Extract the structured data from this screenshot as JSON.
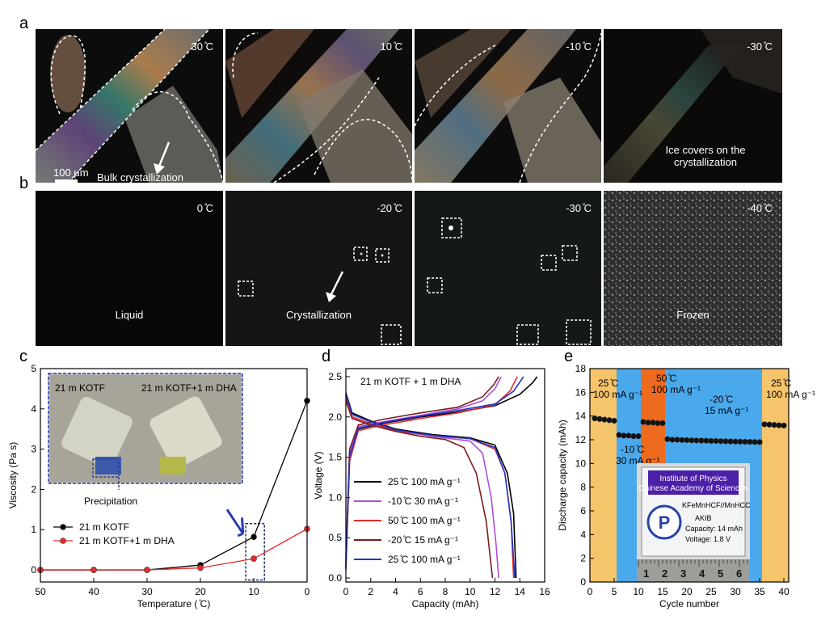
{
  "panel_labels": {
    "a": "a",
    "b": "b",
    "c": "c",
    "d": "d",
    "e": "e"
  },
  "row_a": {
    "temps": [
      "30 ̊C",
      "10 ̊C",
      "-10 ̊C",
      "-30 ̊C"
    ],
    "scale_bar": "100 μm",
    "annotation_1": "Bulk crystallization",
    "annotation_2": "Ice covers on the crystallization"
  },
  "row_b": {
    "temps": [
      "0 ̊C",
      "-20 ̊C",
      "-30 ̊C",
      "-40 ̊C"
    ],
    "captions": [
      "Liquid",
      "Crystallization",
      "",
      "Frozen"
    ]
  },
  "chart_data": [
    {
      "type": "line",
      "panel": "c",
      "xlabel": "Temperature ( ̊C)",
      "ylabel": "Viscosity (Pa s)",
      "xlim": [
        50,
        0
      ],
      "ylim": [
        -0.3,
        5
      ],
      "xticks": [
        50,
        40,
        30,
        20,
        10,
        0
      ],
      "yticks": [
        0,
        1,
        2,
        3,
        4,
        5
      ],
      "series": [
        {
          "name": "21 m KOTF",
          "color": "#000000",
          "x": [
            50,
            40,
            30,
            20,
            10,
            0
          ],
          "y": [
            0.0,
            0.0,
            0.0,
            0.12,
            0.82,
            4.2
          ]
        },
        {
          "name": "21 m KOTF+1 m DHA",
          "color": "#e32b2b",
          "x": [
            50,
            40,
            30,
            20,
            10,
            0
          ],
          "y": [
            0.0,
            0.0,
            0.0,
            0.05,
            0.28,
            1.02
          ]
        }
      ],
      "inset": {
        "label_left": "21 m KOTF",
        "label_right": "21 m KOTF+1 m DHA",
        "annotation": "Precipitation"
      }
    },
    {
      "type": "line",
      "panel": "d",
      "title": "21 m KOTF + 1 m DHA",
      "xlabel": "Capacity (mAh)",
      "ylabel": "Voltage (V)",
      "xlim": [
        0,
        16
      ],
      "ylim": [
        -0.05,
        2.6
      ],
      "xticks": [
        0,
        2,
        4,
        6,
        8,
        10,
        12,
        14,
        16
      ],
      "yticks": [
        0.0,
        0.5,
        1.0,
        1.5,
        2.0,
        2.5
      ],
      "series": [
        {
          "name": "25 ̊C   100 mA g⁻¹",
          "color": "#000000",
          "charge": [
            [
              0,
              0.15
            ],
            [
              0.3,
              1.5
            ],
            [
              1,
              1.85
            ],
            [
              3,
              1.92
            ],
            [
              6,
              2.0
            ],
            [
              9,
              2.06
            ],
            [
              12,
              2.14
            ],
            [
              14,
              2.28
            ],
            [
              15,
              2.42
            ],
            [
              15.4,
              2.5
            ]
          ],
          "discharge": [
            [
              0,
              2.3
            ],
            [
              0.5,
              2.05
            ],
            [
              2,
              1.95
            ],
            [
              4,
              1.85
            ],
            [
              7,
              1.78
            ],
            [
              10,
              1.74
            ],
            [
              12,
              1.65
            ],
            [
              13,
              1.3
            ],
            [
              13.5,
              0.8
            ],
            [
              13.7,
              0.0
            ]
          ]
        },
        {
          "name": "-10 ̊C   30 mA g⁻¹",
          "color": "#b04ad8",
          "charge": [
            [
              0,
              0.2
            ],
            [
              0.3,
              1.55
            ],
            [
              1,
              1.88
            ],
            [
              3,
              1.94
            ],
            [
              6,
              2.02
            ],
            [
              9,
              2.1
            ],
            [
              11,
              2.2
            ],
            [
              12,
              2.35
            ],
            [
              12.5,
              2.5
            ]
          ],
          "discharge": [
            [
              0,
              2.28
            ],
            [
              0.5,
              2.0
            ],
            [
              2,
              1.92
            ],
            [
              4,
              1.83
            ],
            [
              7,
              1.76
            ],
            [
              10,
              1.7
            ],
            [
              11,
              1.55
            ],
            [
              11.7,
              1.0
            ],
            [
              12.1,
              0.4
            ],
            [
              12.3,
              0.0
            ]
          ]
        },
        {
          "name": "50 ̊C   100 mA g⁻¹",
          "color": "#e32b2b",
          "charge": [
            [
              0,
              0.1
            ],
            [
              0.3,
              1.45
            ],
            [
              1,
              1.83
            ],
            [
              3,
              1.9
            ],
            [
              6,
              1.98
            ],
            [
              9,
              2.05
            ],
            [
              12,
              2.15
            ],
            [
              13.2,
              2.32
            ],
            [
              13.8,
              2.5
            ]
          ],
          "discharge": [
            [
              0,
              2.25
            ],
            [
              0.5,
              2.0
            ],
            [
              2,
              1.92
            ],
            [
              4,
              1.83
            ],
            [
              7,
              1.77
            ],
            [
              10,
              1.73
            ],
            [
              12,
              1.6
            ],
            [
              12.8,
              1.3
            ],
            [
              13.3,
              0.7
            ],
            [
              13.5,
              0.0
            ]
          ]
        },
        {
          "name": "-20 ̊C   15 mA g⁻¹",
          "color": "#7a1d1d",
          "charge": [
            [
              0,
              0.25
            ],
            [
              0.3,
              1.6
            ],
            [
              1,
              1.9
            ],
            [
              3,
              1.97
            ],
            [
              6,
              2.05
            ],
            [
              9,
              2.12
            ],
            [
              11,
              2.25
            ],
            [
              11.9,
              2.4
            ],
            [
              12.3,
              2.5
            ]
          ],
          "discharge": [
            [
              0,
              2.2
            ],
            [
              0.5,
              1.98
            ],
            [
              2,
              1.9
            ],
            [
              4,
              1.82
            ],
            [
              6,
              1.76
            ],
            [
              8,
              1.72
            ],
            [
              9.5,
              1.62
            ],
            [
              10.5,
              1.3
            ],
            [
              11.3,
              0.7
            ],
            [
              11.8,
              0.0
            ]
          ]
        },
        {
          "name": "25 ̊C   100 mA g⁻¹",
          "color": "#2235c8",
          "charge": [
            [
              0,
              0.12
            ],
            [
              0.3,
              1.5
            ],
            [
              1,
              1.86
            ],
            [
              3,
              1.93
            ],
            [
              6,
              2.01
            ],
            [
              9,
              2.08
            ],
            [
              12,
              2.16
            ],
            [
              13.5,
              2.32
            ],
            [
              14.3,
              2.5
            ]
          ],
          "discharge": [
            [
              0,
              2.28
            ],
            [
              0.5,
              2.03
            ],
            [
              2,
              1.94
            ],
            [
              4,
              1.84
            ],
            [
              7,
              1.77
            ],
            [
              10,
              1.73
            ],
            [
              12,
              1.62
            ],
            [
              12.8,
              1.3
            ],
            [
              13.3,
              0.7
            ],
            [
              13.6,
              0.0
            ]
          ]
        }
      ]
    },
    {
      "type": "scatter",
      "panel": "e",
      "xlabel": "Cycle number",
      "ylabel": "Discharge capacity (mAh)",
      "xlim": [
        0,
        41
      ],
      "ylim": [
        0,
        18
      ],
      "xticks": [
        0,
        5,
        10,
        15,
        20,
        25,
        30,
        35,
        40
      ],
      "yticks": [
        0,
        2,
        4,
        6,
        8,
        10,
        12,
        14,
        16,
        18
      ],
      "bands": [
        {
          "from": 0,
          "to": 5.5,
          "color": "#f6c46a",
          "label": "25 ̊C\n100 mA g⁻¹"
        },
        {
          "from": 5.5,
          "to": 10.5,
          "color": "#4aa9ec",
          "label": "-10 ̊C\n30 mA g⁻¹"
        },
        {
          "from": 10.5,
          "to": 15.5,
          "color": "#ee6a1f",
          "label": "50 ̊C\n100 mA g⁻¹"
        },
        {
          "from": 15.5,
          "to": 35.5,
          "color": "#4aa9ec",
          "label": "-20 ̊C\n15 mA g⁻¹"
        },
        {
          "from": 35.5,
          "to": 41,
          "color": "#f6c46a",
          "label": "25 ̊C\n100 mA g⁻¹"
        }
      ],
      "points": [
        [
          1,
          13.8
        ],
        [
          2,
          13.75
        ],
        [
          3,
          13.7
        ],
        [
          4,
          13.65
        ],
        [
          5,
          13.6
        ],
        [
          6,
          12.4
        ],
        [
          7,
          12.35
        ],
        [
          8,
          12.35
        ],
        [
          9,
          12.3
        ],
        [
          10,
          12.3
        ],
        [
          11,
          13.5
        ],
        [
          12,
          13.45
        ],
        [
          13,
          13.45
        ],
        [
          14,
          13.4
        ],
        [
          15,
          13.4
        ],
        [
          16,
          12.05
        ],
        [
          17,
          12.0
        ],
        [
          18,
          12.0
        ],
        [
          19,
          11.98
        ],
        [
          20,
          11.97
        ],
        [
          21,
          11.95
        ],
        [
          22,
          11.94
        ],
        [
          23,
          11.93
        ],
        [
          24,
          11.92
        ],
        [
          25,
          11.9
        ],
        [
          26,
          11.9
        ],
        [
          27,
          11.88
        ],
        [
          28,
          11.87
        ],
        [
          29,
          11.86
        ],
        [
          30,
          11.85
        ],
        [
          31,
          11.84
        ],
        [
          32,
          11.83
        ],
        [
          33,
          11.82
        ],
        [
          34,
          11.81
        ],
        [
          35,
          11.8
        ],
        [
          36,
          13.3
        ],
        [
          37,
          13.28
        ],
        [
          38,
          13.25
        ],
        [
          39,
          13.22
        ],
        [
          40,
          13.2
        ]
      ],
      "inset": {
        "line1": "Institute of Physics",
        "line2": "Chinese Academy of Sciences",
        "line3": "KFeMnHCF//MnHCC",
        "line4": "AKIB",
        "line5": "Capacity: 14 mAh",
        "line6": "Voltage: 1.8 V",
        "ruler": [
          "1",
          "2",
          "3",
          "4",
          "5",
          "6"
        ]
      }
    }
  ]
}
